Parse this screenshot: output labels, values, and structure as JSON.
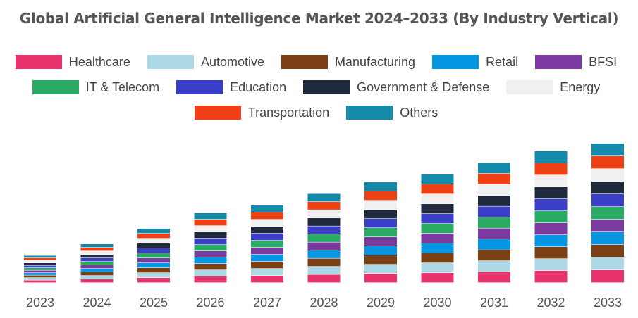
{
  "chart_data": {
    "type": "bar",
    "stacked": true,
    "title": "Global Artificial General Intelligence Market 2024–2033 (By Industry Vertical)",
    "xlabel": "",
    "ylabel": "",
    "categories": [
      "2023",
      "2024",
      "2025",
      "2026",
      "2027",
      "2028",
      "2029",
      "2030",
      "2031",
      "2032",
      "2033"
    ],
    "legend_position": "top",
    "grid": false,
    "series": [
      {
        "name": "Healthcare",
        "color": "#e8336d",
        "values": [
          3.5,
          5,
          7,
          9,
          10,
          11.5,
          13,
          14,
          15.5,
          17,
          18
        ]
      },
      {
        "name": "Automotive",
        "color": "#add8e6",
        "values": [
          3.5,
          5,
          7,
          9,
          10,
          11.5,
          13,
          14,
          15.5,
          17,
          18
        ]
      },
      {
        "name": "Manufacturing",
        "color": "#7b3f14",
        "values": [
          3.5,
          5,
          7,
          9,
          10,
          11.5,
          13,
          14,
          15.5,
          17,
          18
        ]
      },
      {
        "name": "Retail",
        "color": "#0796e2",
        "values": [
          3.5,
          5,
          7,
          9,
          10,
          11.5,
          13,
          14,
          15.5,
          17,
          18
        ]
      },
      {
        "name": "BFSI",
        "color": "#7a3aa0",
        "values": [
          3.5,
          5,
          7,
          9,
          10,
          11.5,
          13,
          14,
          15.5,
          17,
          18
        ]
      },
      {
        "name": "IT & Telecom",
        "color": "#2aaa62",
        "values": [
          3.5,
          5,
          7,
          9,
          10,
          11.5,
          13,
          14,
          15.5,
          17,
          18
        ]
      },
      {
        "name": "Education",
        "color": "#3b3fc8",
        "values": [
          3.5,
          5,
          7,
          9,
          10,
          11.5,
          13,
          14,
          15.5,
          17,
          18
        ]
      },
      {
        "name": "Government & Defense",
        "color": "#1f2b3c",
        "values": [
          3.5,
          5,
          7,
          9,
          10,
          11.5,
          13,
          14,
          15.5,
          17,
          18
        ]
      },
      {
        "name": "Energy",
        "color": "#f0f0f0",
        "values": [
          3.5,
          5,
          7,
          9,
          10,
          11.5,
          13,
          14,
          15.5,
          17,
          18
        ]
      },
      {
        "name": "Transportation",
        "color": "#ee4115",
        "values": [
          3.5,
          5,
          7,
          9,
          10,
          11.5,
          13,
          14,
          15.5,
          17,
          18
        ]
      },
      {
        "name": "Others",
        "color": "#138aaa",
        "values": [
          3.5,
          5,
          7,
          9,
          10,
          11.5,
          13,
          14,
          15.5,
          17,
          18
        ]
      }
    ]
  }
}
